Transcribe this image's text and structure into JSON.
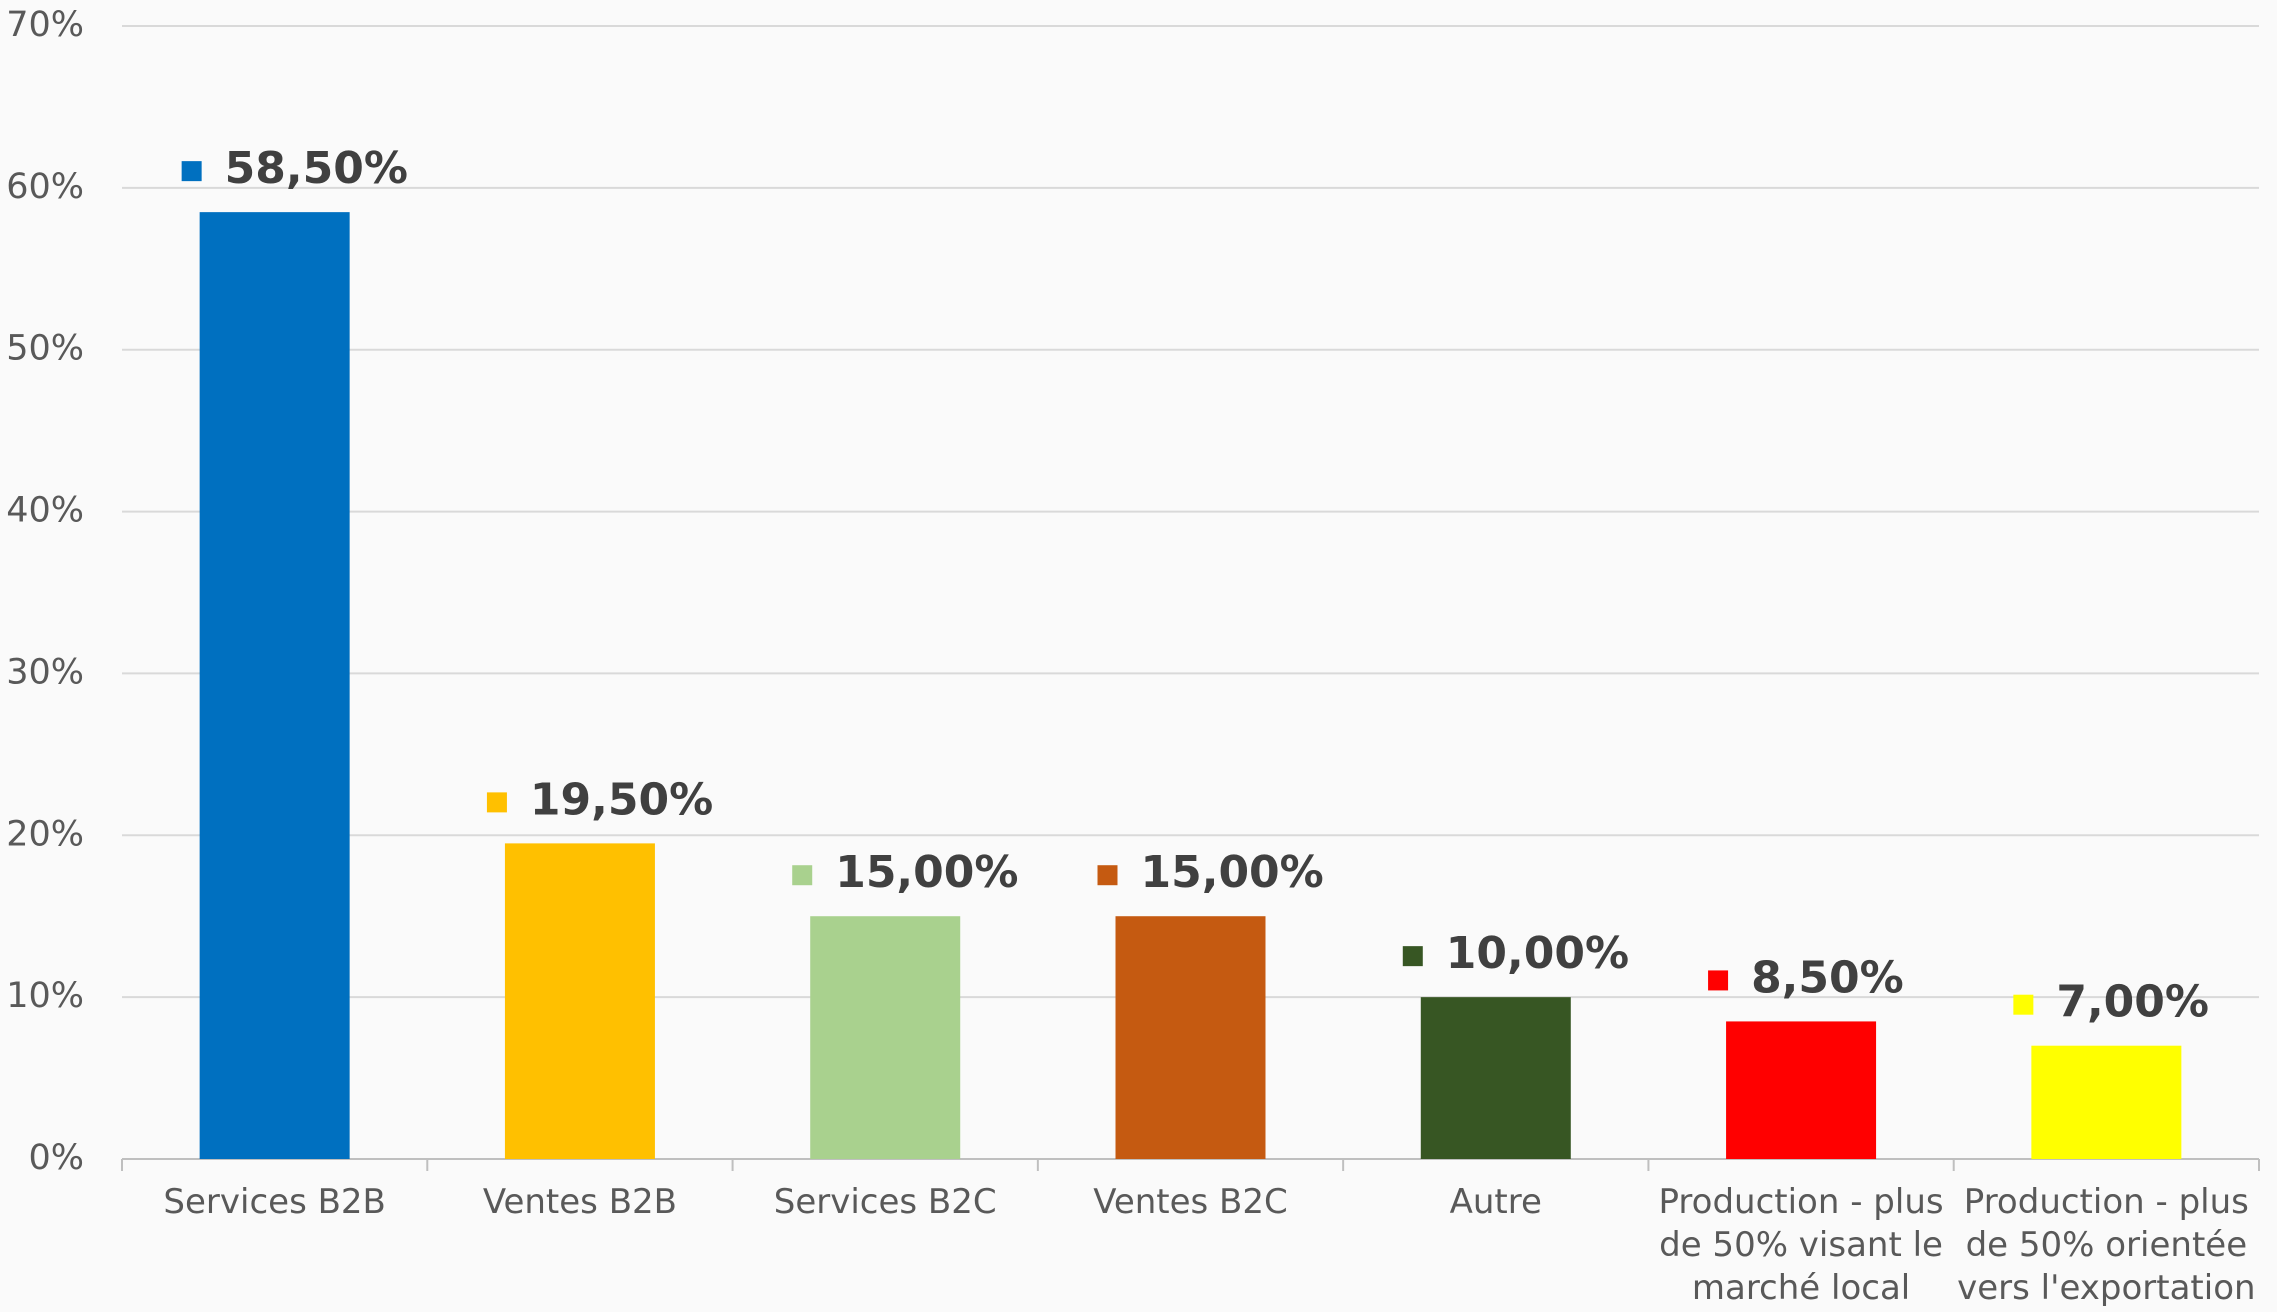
{
  "chart_data": {
    "type": "bar",
    "categories": [
      "Services B2B",
      "Ventes B2B",
      "Services B2C",
      "Ventes B2C",
      "Autre",
      "Production - plus de 50% visant le marché local",
      "Production - plus de 50% orientée vers l'exportation"
    ],
    "values": [
      58.5,
      19.5,
      15,
      15,
      10,
      8.5,
      7
    ],
    "value_labels": [
      "58,50%",
      "19,50%",
      "15,00%",
      "15,00%",
      "10,00%",
      "8,50%",
      "7,00%"
    ],
    "colors": [
      "#0070c0",
      "#ffc000",
      "#a9d18e",
      "#c55a11",
      "#375623",
      "#ff0000",
      "#ffff00"
    ],
    "ylim": [
      0,
      70
    ],
    "yticks": [
      {
        "value": 0,
        "label": "0%"
      },
      {
        "value": 10,
        "label": "10%"
      },
      {
        "value": 20,
        "label": "20%"
      },
      {
        "value": 30,
        "label": "30%"
      },
      {
        "value": 40,
        "label": "40%"
      },
      {
        "value": 50,
        "label": "50%"
      },
      {
        "value": 60,
        "label": "60%"
      },
      {
        "value": 70,
        "label": "70%"
      }
    ],
    "grid": true
  }
}
